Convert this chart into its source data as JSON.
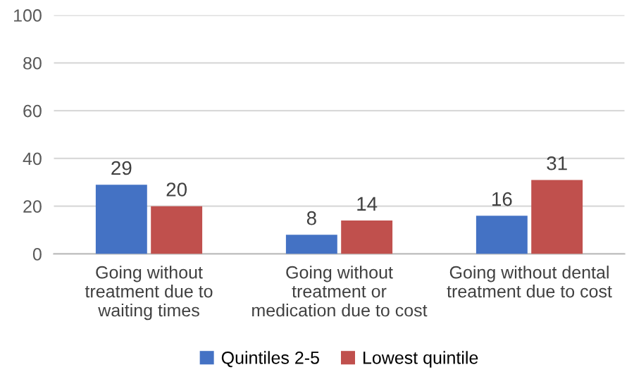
{
  "chart_data": {
    "type": "bar",
    "categories": [
      "Going without\ntreatment due to\nwaiting times",
      "Going without\ntreatment or\nmedication due to cost",
      "Going without dental\ntreatment due to cost"
    ],
    "series": [
      {
        "name": "Quintiles 2-5",
        "color": "#4472c4",
        "values": [
          29,
          8,
          16
        ]
      },
      {
        "name": "Lowest quintile",
        "color": "#c0504d",
        "values": [
          20,
          14,
          31
        ]
      }
    ],
    "ylim": [
      0,
      100
    ],
    "yticks": [
      0,
      20,
      40,
      60,
      80,
      100
    ],
    "grid": "y",
    "data_labels": true,
    "legend": "bottom"
  }
}
